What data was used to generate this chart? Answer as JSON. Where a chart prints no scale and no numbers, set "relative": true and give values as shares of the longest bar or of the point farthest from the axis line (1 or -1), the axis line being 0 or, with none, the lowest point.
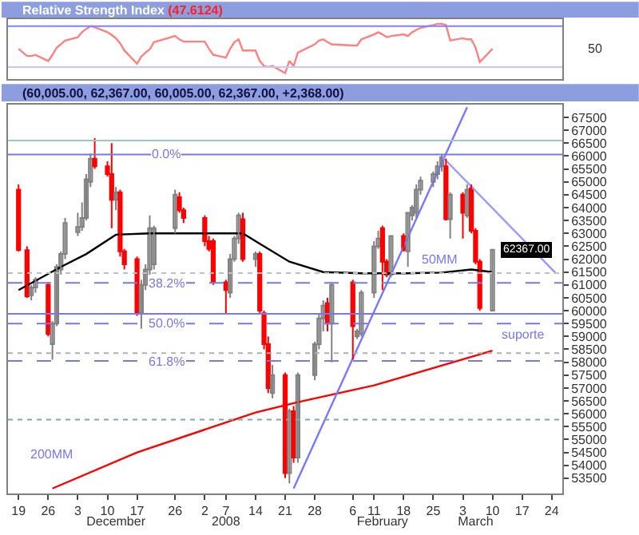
{
  "chart_data": [
    {
      "type": "line",
      "title": "Relative Strength Index",
      "subtitle": "(47.6124)",
      "x": [
        "2007-11-19",
        "2007-11-21",
        "2007-11-22",
        "2007-11-23",
        "2007-11-26",
        "2007-11-27",
        "2007-11-28",
        "2007-11-29",
        "2007-11-30",
        "2007-12-03",
        "2007-12-04",
        "2007-12-05",
        "2007-12-06",
        "2007-12-07",
        "2007-12-10",
        "2007-12-11",
        "2007-12-12",
        "2007-12-13",
        "2007-12-14",
        "2007-12-17",
        "2007-12-18",
        "2007-12-19",
        "2007-12-20",
        "2007-12-21",
        "2007-12-26",
        "2007-12-27",
        "2007-12-28",
        "2008-01-02",
        "2008-01-03",
        "2008-01-04",
        "2008-01-07",
        "2008-01-08",
        "2008-01-09",
        "2008-01-10",
        "2008-01-11",
        "2008-01-14",
        "2008-01-15",
        "2008-01-16",
        "2008-01-17",
        "2008-01-18",
        "2008-01-21",
        "2008-01-22",
        "2008-01-23",
        "2008-01-24",
        "2008-01-28",
        "2008-01-29",
        "2008-01-30",
        "2008-01-31",
        "2008-02-01",
        "2008-02-06",
        "2008-02-07",
        "2008-02-08",
        "2008-02-11",
        "2008-02-12",
        "2008-02-13",
        "2008-02-14",
        "2008-02-15",
        "2008-02-18",
        "2008-02-19",
        "2008-02-20",
        "2008-02-21",
        "2008-02-22",
        "2008-02-25",
        "2008-02-26",
        "2008-02-27",
        "2008-02-28",
        "2008-02-29",
        "2008-03-03",
        "2008-03-04",
        "2008-03-05",
        "2008-03-06",
        "2008-03-07",
        "2008-03-10"
      ],
      "series": [
        {
          "color": "#ff8080",
          "values": [
            0.55,
            0.42,
            0.42,
            0.44,
            0.33,
            0.44,
            0.57,
            0.63,
            0.7,
            0.76,
            0.85,
            0.91,
            0.96,
            0.94,
            0.85,
            0.8,
            0.74,
            0.65,
            0.52,
            0.28,
            0.41,
            0.48,
            0.54,
            0.67,
            0.78,
            0.72,
            0.68,
            0.68,
            0.55,
            0.44,
            0.39,
            0.55,
            0.67,
            0.72,
            0.52,
            0.52,
            0.33,
            0.24,
            0.22,
            0.24,
            0.11,
            0.33,
            0.24,
            0.48,
            0.63,
            0.7,
            0.72,
            0.67,
            0.63,
            0.61,
            0.61,
            0.72,
            0.81,
            0.85,
            0.81,
            0.76,
            0.78,
            0.81,
            0.78,
            0.85,
            0.89,
            0.93,
            0.98,
            1,
            1,
            0.98,
            0.7,
            0.74,
            0.72,
            0.72,
            0.57,
            0.31,
            0.55
          ]
        }
      ],
      "relative": true,
      "xlim": [
        "2007-11-16T12:00",
        "2008-03-26T12:00"
      ],
      "tick_labels": false,
      "annotations": [
        "50"
      ],
      "ref_lines": [
        {
          "axis": "y",
          "value": 0.96,
          "color": "#8080ff",
          "line_style": "solid"
        },
        {
          "axis": "y",
          "value": 0.22,
          "color": "#c0c8ff",
          "line_style": "solid"
        }
      ]
    },
    {
      "type": "candlestick",
      "title": "(60,005.00, 62,367.00, 60,005.00, 62,367.00, +2,368.00)",
      "x": [
        "2007-11-19",
        "2007-11-21",
        "2007-11-22",
        "2007-11-23",
        "2007-11-26",
        "2007-11-27",
        "2007-11-28",
        "2007-11-29",
        "2007-11-30",
        "2007-12-03",
        "2007-12-04",
        "2007-12-05",
        "2007-12-06",
        "2007-12-07",
        "2007-12-10",
        "2007-12-11",
        "2007-12-12",
        "2007-12-13",
        "2007-12-14",
        "2007-12-17",
        "2007-12-18",
        "2007-12-19",
        "2007-12-20",
        "2007-12-21",
        "2007-12-26",
        "2007-12-27",
        "2007-12-28",
        "2008-01-02",
        "2008-01-03",
        "2008-01-04",
        "2008-01-07",
        "2008-01-08",
        "2008-01-09",
        "2008-01-10",
        "2008-01-11",
        "2008-01-14",
        "2008-01-15",
        "2008-01-16",
        "2008-01-17",
        "2008-01-18",
        "2008-01-21",
        "2008-01-22",
        "2008-01-23",
        "2008-01-24",
        "2008-01-28",
        "2008-01-29",
        "2008-01-30",
        "2008-01-31",
        "2008-02-01",
        "2008-02-06",
        "2008-02-07",
        "2008-02-08",
        "2008-02-11",
        "2008-02-12",
        "2008-02-13",
        "2008-02-14",
        "2008-02-15",
        "2008-02-18",
        "2008-02-19",
        "2008-02-20",
        "2008-02-21",
        "2008-02-22",
        "2008-02-25",
        "2008-02-26",
        "2008-02-27",
        "2008-02-28",
        "2008-02-29",
        "2008-03-03",
        "2008-03-04",
        "2008-03-05",
        "2008-03-06",
        "2008-03-07",
        "2008-03-10"
      ],
      "ohlc": [
        [
          64700,
          64900,
          62300,
          62350
        ],
        [
          62350,
          62500,
          60500,
          60550
        ],
        [
          60600,
          61000,
          60400,
          60900
        ],
        [
          60900,
          61300,
          60700,
          61200
        ],
        [
          61000,
          61100,
          59000,
          59100
        ],
        [
          58700,
          59600,
          58100,
          59500
        ],
        [
          59500,
          61800,
          59400,
          61700
        ],
        [
          61600,
          62300,
          61400,
          62200
        ],
        [
          62200,
          63600,
          62000,
          63400
        ],
        [
          63050,
          63800,
          62900,
          63250
        ],
        [
          63250,
          64200,
          63100,
          63600
        ],
        [
          63600,
          65300,
          63500,
          65100
        ],
        [
          65000,
          66100,
          64800,
          65900
        ],
        [
          65900,
          66700,
          65500,
          65600
        ],
        [
          65600,
          65800,
          65200,
          65300
        ],
        [
          65300,
          66500,
          63200,
          64300
        ],
        [
          64300,
          64800,
          63900,
          64600
        ],
        [
          64600,
          64700,
          62100,
          62300
        ],
        [
          62300,
          62400,
          61600,
          61800
        ],
        [
          62000,
          62100,
          59800,
          59900
        ],
        [
          59900,
          61200,
          59300,
          61000
        ],
        [
          61000,
          61800,
          60800,
          61600
        ],
        [
          61600,
          63700,
          61400,
          63200
        ],
        [
          61800,
          63300,
          61600,
          63200
        ],
        [
          63200,
          64700,
          63000,
          64500
        ],
        [
          64400,
          64600,
          63800,
          63900
        ],
        [
          63900,
          64000,
          63400,
          63600
        ],
        [
          63600,
          63700,
          62500,
          62700
        ],
        [
          62700,
          62900,
          62300,
          62400
        ],
        [
          62700,
          62800,
          61000,
          61100
        ],
        [
          61100,
          61200,
          59900,
          60800
        ],
        [
          60700,
          62200,
          60500,
          62000
        ],
        [
          62000,
          62900,
          61900,
          62800
        ],
        [
          62800,
          63800,
          62600,
          63700
        ],
        [
          63550,
          63800,
          61900,
          62000
        ],
        [
          62000,
          62300,
          61700,
          62200
        ],
        [
          62200,
          62300,
          59900,
          60000
        ],
        [
          59900,
          60000,
          58500,
          58700
        ],
        [
          58700,
          59000,
          56800,
          57000
        ],
        [
          56800,
          57900,
          56600,
          57500
        ],
        [
          57500,
          57600,
          53500,
          53700
        ],
        [
          53700,
          56200,
          53300,
          56100
        ],
        [
          56100,
          56300,
          54100,
          54300
        ],
        [
          54300,
          57600,
          54100,
          57500
        ],
        [
          57500,
          58800,
          57300,
          58700
        ],
        [
          58700,
          59900,
          58500,
          59700
        ],
        [
          59700,
          60400,
          59200,
          60200
        ],
        [
          60300,
          60500,
          59200,
          59500
        ],
        [
          59500,
          61100,
          58000,
          61000
        ],
        [
          61100,
          61200,
          58100,
          59400
        ],
        [
          59000,
          59300,
          58900,
          59200
        ],
        [
          59100,
          60800,
          59000,
          60700
        ],
        [
          60700,
          62700,
          60500,
          62500
        ],
        [
          62500,
          63100,
          62400,
          62800
        ],
        [
          63200,
          63300,
          60800,
          61900
        ],
        [
          61900,
          62000,
          61300,
          61400
        ],
        [
          61400,
          62900,
          61300,
          62900
        ],
        [
          62900,
          63000,
          62300,
          62350
        ],
        [
          62300,
          63800,
          61700,
          63800
        ],
        [
          63700,
          64100,
          63500,
          64000
        ],
        [
          63800,
          64900,
          63600,
          64700
        ],
        [
          64700,
          65200,
          64500,
          65050
        ],
        [
          65000,
          65400,
          64800,
          65300
        ],
        [
          65300,
          65800,
          65100,
          65600
        ],
        [
          65600,
          66050,
          65400,
          65950
        ],
        [
          65600,
          65900,
          63500,
          63550
        ],
        [
          63550,
          64600,
          62800,
          64500
        ],
        [
          64500,
          64600,
          62800,
          63800
        ],
        [
          63700,
          64900,
          63600,
          64700
        ],
        [
          64750,
          64900,
          63000,
          63100
        ],
        [
          63100,
          63200,
          61800,
          61900
        ],
        [
          61900,
          62000,
          60000,
          60100
        ],
        [
          60005,
          62367,
          60005,
          62367
        ]
      ],
      "colors": [
        "#ff0000",
        "#ff0000",
        "#ffffff",
        "#ffffff",
        "#ff0000",
        "#ffffff",
        "#ffffff",
        "#ffffff",
        "#ffffff",
        "#ffffff",
        "#ffffff",
        "#ffffff",
        "#ffffff",
        "#ff0000",
        "#ff0000",
        "#ff0000",
        "#ffffff",
        "#ff0000",
        "#ff0000",
        "#ff0000",
        "#ffffff",
        "#ffffff",
        "#ffffff",
        "#ffffff",
        "#ffffff",
        "#ff0000",
        "#ff0000",
        "#ff0000",
        "#ff0000",
        "#ff0000",
        "#ff0000",
        "#ffffff",
        "#ffffff",
        "#ffffff",
        "#ff0000",
        "#ffffff",
        "#ff0000",
        "#ff0000",
        "#ff0000",
        "#ffffff",
        "#ff0000",
        "#ffffff",
        "#ff0000",
        "#ffffff",
        "#ffffff",
        "#ffffff",
        "#ffffff",
        "#ff0000",
        "#ffffff",
        "#ff0000",
        "#ffffff",
        "#ffffff",
        "#ffffff",
        "#ffffff",
        "#ff0000",
        "#ff0000",
        "#ffffff",
        "#ff0000",
        "#ffffff",
        "#ffffff",
        "#ffffff",
        "#ffffff",
        "#ffffff",
        "#ffffff",
        "#ffffff",
        "#ff0000",
        "#ffffff",
        "#ff0000",
        "#ffffff",
        "#ff0000",
        "#ff0000",
        "#ff0000",
        "#ffffff"
      ],
      "series": [
        {
          "type": "line",
          "color": "#000000",
          "x": [
            "2007-11-19",
            "2007-11-29",
            "2007-12-05",
            "2007-12-12",
            "2007-12-20",
            "2008-01-02",
            "2008-01-11",
            "2008-01-15",
            "2008-01-22",
            "2008-01-30",
            "2008-02-08",
            "2008-02-18",
            "2008-02-27",
            "2008-03-05",
            "2008-03-10"
          ],
          "values": [
            60800,
            61700,
            62200,
            62950,
            63000,
            63000,
            63000,
            62600,
            61900,
            61500,
            61450,
            61450,
            61480,
            61600,
            61500
          ]
        },
        {
          "type": "line",
          "color": "#ff0000",
          "x": [
            "2007-11-27",
            "2007-12-17",
            "2008-01-14",
            "2008-01-24",
            "2008-02-11",
            "2008-03-10"
          ],
          "values": [
            53100,
            54500,
            56050,
            56450,
            57100,
            58450
          ]
        },
        {
          "type": "line",
          "color": "#7777ff",
          "x": [
            "2008-01-23",
            "2008-03-04"
          ],
          "values": [
            53100,
            67900
          ]
        },
        {
          "type": "line",
          "color": "#9999ff",
          "x": [
            "2008-02-27",
            "2008-03-25"
          ],
          "values": [
            66000,
            61450
          ]
        }
      ],
      "xlim": [
        "2007-11-16T12:00",
        "2008-03-26T12:00"
      ],
      "xticks": [
        {
          "value": "2007-11-19",
          "label": "19"
        },
        {
          "value": "2007-11-26",
          "label": "26"
        },
        {
          "value": "2007-12-03",
          "label": "3"
        },
        {
          "value": "2007-12-10",
          "label": "10"
        },
        {
          "value": "2007-12-17",
          "label": "17"
        },
        {
          "value": "2007-12-26",
          "label": "26"
        },
        {
          "value": "2008-01-02",
          "label": "2"
        },
        {
          "value": "2008-01-07",
          "label": "7"
        },
        {
          "value": "2008-01-14",
          "label": "14"
        },
        {
          "value": "2008-01-21",
          "label": "21"
        },
        {
          "value": "2008-01-28",
          "label": "28"
        },
        {
          "value": "2008-02-06",
          "label": "6"
        },
        {
          "value": "2008-02-11",
          "label": "11"
        },
        {
          "value": "2008-02-18",
          "label": "18"
        },
        {
          "value": "2008-02-25",
          "label": "25"
        },
        {
          "value": "2008-03-03",
          "label": "3"
        },
        {
          "value": "2008-03-10",
          "label": "10"
        },
        {
          "value": "2008-03-17",
          "label": "17"
        },
        {
          "value": "2008-03-24",
          "label": "24"
        }
      ],
      "x2lim": [
        "2007-11-16T12:00",
        "2008-03-26T12:00"
      ],
      "x2ticks": [
        {
          "value": "2007-12-12",
          "label": "December"
        },
        {
          "value": "2008-01-07",
          "label": "2008"
        },
        {
          "value": "2008-02-13",
          "label": "February"
        },
        {
          "value": "2008-03-06",
          "label": "March"
        }
      ],
      "ylim": [
        52900,
        68000
      ],
      "yticks": [
        53500,
        54000,
        54500,
        55000,
        55500,
        56000,
        56500,
        57000,
        57500,
        58000,
        58500,
        59000,
        59500,
        60000,
        60500,
        61000,
        61500,
        62000,
        62500,
        63000,
        63500,
        64000,
        64500,
        65000,
        65500,
        66000,
        66500,
        67000,
        67500
      ],
      "ref_lines": [
        {
          "axis": "y",
          "value": 66600,
          "color": "#a0c8c8",
          "line_style": "solid"
        },
        {
          "axis": "y",
          "value": 66060,
          "color": "#7777ee",
          "line_style": "solid"
        },
        {
          "axis": "y",
          "value": 61460,
          "color": "#c0c0c0",
          "line_style": "dotted"
        },
        {
          "axis": "y",
          "value": 61080,
          "color": "#7777ee",
          "line_style": "dashed"
        },
        {
          "axis": "y",
          "value": 59880,
          "color": "#7777ee",
          "line_style": "solid"
        },
        {
          "axis": "y",
          "value": 59500,
          "color": "#7777ee",
          "line_style": "dashed"
        },
        {
          "axis": "y",
          "value": 58350,
          "color": "#b0b0b0",
          "line_style": "dotted"
        },
        {
          "axis": "y",
          "value": 58050,
          "color": "#7777ee",
          "line_style": "dashed"
        },
        {
          "axis": "y",
          "value": 55770,
          "color": "#80a8a8",
          "line_style": "dotted"
        }
      ],
      "annotations": [
        {
          "text": "0.0%",
          "x": "2007-12-24",
          "y": 66060
        },
        {
          "text": "38.2%",
          "x": "2007-12-24",
          "y": 61080
        },
        {
          "text": "50.0%",
          "x": "2007-12-24",
          "y": 59500
        },
        {
          "text": "61.8%",
          "x": "2007-12-24",
          "y": 58050
        },
        "50MM",
        "suporte",
        "200MM",
        {
          "text": "62367.00",
          "x": "2008-03-10",
          "y": 62367
        }
      ]
    }
  ]
}
